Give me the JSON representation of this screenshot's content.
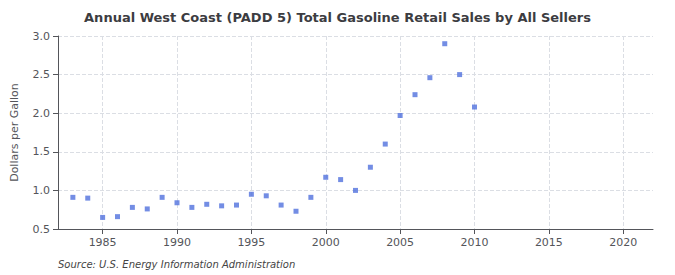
{
  "chart_data": {
    "type": "scatter",
    "title": "Annual West Coast (PADD 5) Total Gasoline Retail Sales by All Sellers",
    "ylabel": "Dollars per Gallon",
    "annotation": "Source: U.S. Energy Information Administration",
    "x": [
      1983,
      1984,
      1985,
      1986,
      1987,
      1988,
      1989,
      1990,
      1991,
      1992,
      1993,
      1994,
      1995,
      1996,
      1997,
      1998,
      1999,
      2000,
      2001,
      2002,
      2003,
      2004,
      2005,
      2006,
      2007,
      2008,
      2009,
      2010
    ],
    "values": [
      0.91,
      0.9,
      0.65,
      0.66,
      0.78,
      0.76,
      0.91,
      0.84,
      0.78,
      0.82,
      0.8,
      0.81,
      0.95,
      0.93,
      0.81,
      0.73,
      0.91,
      1.17,
      1.14,
      1.0,
      1.3,
      1.6,
      1.97,
      2.24,
      2.46,
      2.9,
      2.5,
      2.08
    ],
    "marker": "square",
    "xlim": [
      1982,
      2022
    ],
    "xticks": [
      1985,
      1990,
      1995,
      2000,
      2005,
      2010,
      2015,
      2020
    ],
    "ylim": [
      0.5,
      3.0
    ],
    "yticks": [
      0.5,
      {
        "value": 1.0,
        "label": "1.0"
      },
      1.5,
      {
        "value": 2.0,
        "label": "2.0"
      },
      2.5,
      {
        "value": 3.0,
        "label": "3.0"
      }
    ],
    "grid": true
  }
}
